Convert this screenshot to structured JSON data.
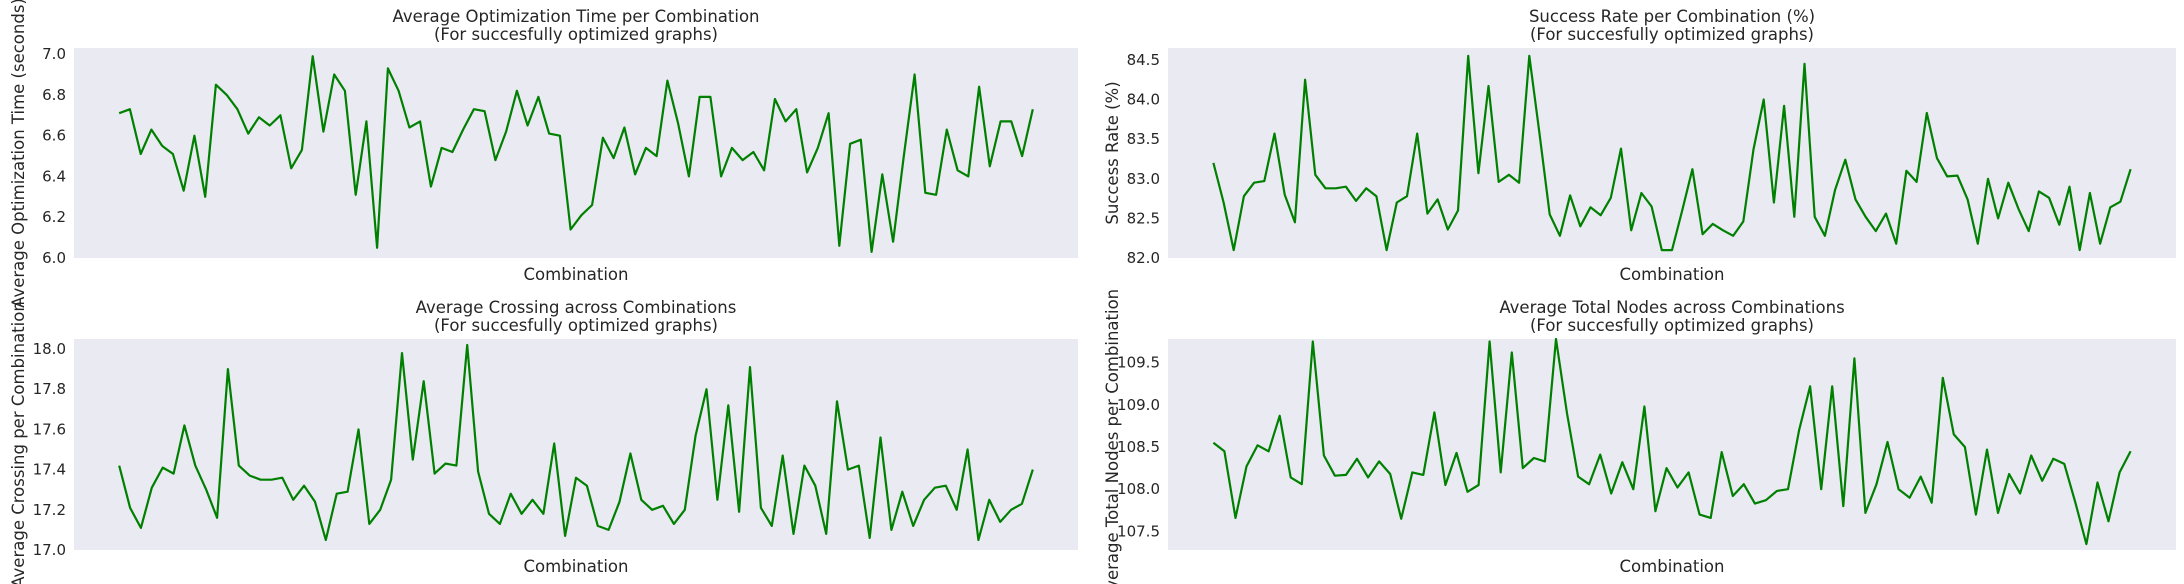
{
  "line_color": "#008000",
  "plot_bg": "#eaeaf2",
  "chart_data": [
    {
      "type": "line",
      "title": "Average Optimization Time per Combination",
      "subtitle": "(For succesfully optimized graphs)",
      "xlabel": "Combination",
      "ylabel": "Average Optimization Time (seconds)",
      "ylim": [
        6.0,
        7.03
      ],
      "yticks": [
        "6.0",
        "6.2",
        "6.4",
        "6.6",
        "6.8",
        "7.0"
      ],
      "grid": false,
      "values": [
        6.71,
        6.73,
        6.51,
        6.63,
        6.55,
        6.51,
        6.33,
        6.6,
        6.3,
        6.85,
        6.8,
        6.73,
        6.61,
        6.69,
        6.65,
        6.7,
        6.44,
        6.53,
        6.99,
        6.62,
        6.9,
        6.82,
        6.31,
        6.67,
        6.05,
        6.93,
        6.82,
        6.64,
        6.67,
        6.35,
        6.54,
        6.52,
        6.63,
        6.73,
        6.72,
        6.48,
        6.62,
        6.82,
        6.65,
        6.79,
        6.61,
        6.6,
        6.14,
        6.21,
        6.26,
        6.59,
        6.49,
        6.64,
        6.41,
        6.54,
        6.5,
        6.87,
        6.66,
        6.4,
        6.79,
        6.79,
        6.4,
        6.54,
        6.48,
        6.52,
        6.43,
        6.78,
        6.67,
        6.73,
        6.42,
        6.54,
        6.71,
        6.06,
        6.56,
        6.58,
        6.03,
        6.41,
        6.08,
        6.5,
        6.9,
        6.32,
        6.31,
        6.63,
        6.43,
        6.4,
        6.84,
        6.45,
        6.67,
        6.67,
        6.5,
        6.73
      ]
    },
    {
      "type": "line",
      "title": "Success Rate per Combination (%)",
      "subtitle": "(For succesfully optimized graphs)",
      "xlabel": "Combination",
      "ylabel": "Success Rate (%)",
      "ylim": [
        82.0,
        84.65
      ],
      "yticks": [
        "82.0",
        "82.5",
        "83.0",
        "83.5",
        "84.0",
        "84.5"
      ],
      "grid": false,
      "values": [
        83.2,
        82.7,
        82.1,
        82.78,
        82.95,
        82.97,
        83.57,
        82.8,
        82.45,
        84.25,
        83.05,
        82.88,
        82.88,
        82.9,
        82.72,
        82.88,
        82.78,
        82.1,
        82.7,
        82.78,
        83.57,
        82.56,
        82.74,
        82.36,
        82.6,
        84.55,
        83.07,
        84.17,
        82.96,
        83.05,
        82.95,
        84.55,
        83.57,
        82.55,
        82.28,
        82.79,
        82.4,
        82.64,
        82.54,
        82.76,
        83.38,
        82.35,
        82.82,
        82.65,
        82.1,
        82.1,
        82.6,
        83.12,
        82.3,
        82.43,
        82.35,
        82.28,
        82.46,
        83.37,
        84.0,
        82.7,
        83.92,
        82.52,
        84.45,
        82.52,
        82.28,
        82.86,
        83.24,
        82.74,
        82.52,
        82.34,
        82.56,
        82.18,
        83.1,
        82.96,
        83.83,
        83.26,
        83.03,
        83.04,
        82.74,
        82.18,
        83.0,
        82.5,
        82.95,
        82.62,
        82.34,
        82.84,
        82.76,
        82.42,
        82.9,
        82.1,
        82.82,
        82.18,
        82.64,
        82.71,
        83.12
      ]
    },
    {
      "type": "line",
      "title": "Average Crossing across Combinations",
      "subtitle": "(For succesfully optimized graphs)",
      "xlabel": "Combination",
      "ylabel": "Average Crossing per Combination",
      "ylim": [
        17.0,
        18.05
      ],
      "yticks": [
        "17.0",
        "17.2",
        "17.4",
        "17.6",
        "17.8",
        "18.0"
      ],
      "grid": false,
      "values": [
        17.42,
        17.21,
        17.11,
        17.31,
        17.41,
        17.38,
        17.62,
        17.42,
        17.3,
        17.16,
        17.9,
        17.42,
        17.37,
        17.35,
        17.35,
        17.36,
        17.25,
        17.32,
        17.24,
        17.05,
        17.28,
        17.29,
        17.6,
        17.13,
        17.2,
        17.35,
        17.98,
        17.45,
        17.84,
        17.38,
        17.43,
        17.42,
        18.02,
        17.39,
        17.18,
        17.13,
        17.28,
        17.18,
        17.25,
        17.18,
        17.53,
        17.07,
        17.36,
        17.32,
        17.12,
        17.1,
        17.24,
        17.48,
        17.25,
        17.2,
        17.22,
        17.13,
        17.2,
        17.57,
        17.8,
        17.25,
        17.72,
        17.19,
        17.91,
        17.21,
        17.12,
        17.47,
        17.08,
        17.42,
        17.32,
        17.08,
        17.74,
        17.4,
        17.42,
        17.06,
        17.56,
        17.1,
        17.29,
        17.12,
        17.25,
        17.31,
        17.32,
        17.2,
        17.5,
        17.05,
        17.25,
        17.14,
        17.2,
        17.23,
        17.4
      ]
    },
    {
      "type": "line",
      "title": "Average Total Nodes across Combinations",
      "subtitle": "(For succesfully optimized graphs)",
      "xlabel": "Combination",
      "ylabel": "Average Total Nodes per Combination",
      "ylim": [
        107.28,
        109.78
      ],
      "yticks": [
        "107.5",
        "108.0",
        "108.5",
        "109.0",
        "109.5"
      ],
      "grid": false,
      "values": [
        108.55,
        108.45,
        107.66,
        108.27,
        108.52,
        108.45,
        108.87,
        108.14,
        108.06,
        109.75,
        108.4,
        108.16,
        108.17,
        108.36,
        108.14,
        108.33,
        108.18,
        107.65,
        108.2,
        108.17,
        108.91,
        108.05,
        108.43,
        107.97,
        108.05,
        109.75,
        108.2,
        109.62,
        108.25,
        108.37,
        108.33,
        109.78,
        108.9,
        108.15,
        108.06,
        108.41,
        107.95,
        108.32,
        108.0,
        108.98,
        107.74,
        108.25,
        108.02,
        108.2,
        107.7,
        107.66,
        108.44,
        107.92,
        108.06,
        107.83,
        107.87,
        107.98,
        108.0,
        108.7,
        109.22,
        108.0,
        109.22,
        107.8,
        109.55,
        107.72,
        108.06,
        108.56,
        108.0,
        107.9,
        108.15,
        107.84,
        109.32,
        108.65,
        108.5,
        107.7,
        108.47,
        107.72,
        108.18,
        107.95,
        108.4,
        108.1,
        108.36,
        108.3,
        107.84,
        107.35,
        108.08,
        107.62,
        108.2,
        108.45
      ]
    }
  ]
}
